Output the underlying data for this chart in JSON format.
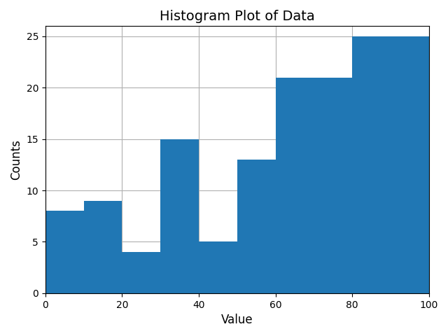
{
  "title": "Histogram Plot of Data",
  "xlabel": "Value",
  "ylabel": "Counts",
  "bar_color": "#2077b4",
  "bin_edges": [
    0,
    10,
    20,
    30,
    40,
    50,
    60,
    80,
    100
  ],
  "counts": [
    8,
    9,
    4,
    15,
    5,
    13,
    21,
    25
  ],
  "xlim": [
    0,
    100
  ],
  "ylim": [
    0,
    26
  ],
  "yticks": [
    0,
    5,
    10,
    15,
    20,
    25
  ],
  "xticks": [
    0,
    20,
    40,
    60,
    80,
    100
  ],
  "grid": true,
  "title_fontsize": 14,
  "label_fontsize": 12,
  "figsize": [
    6.4,
    4.8
  ],
  "dpi": 100
}
